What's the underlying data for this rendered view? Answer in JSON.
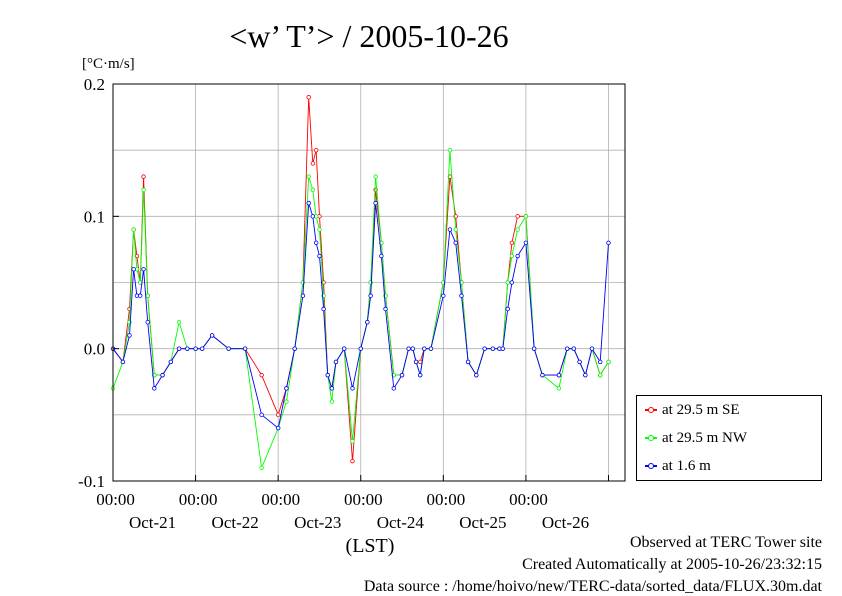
{
  "chart_data": {
    "type": "line",
    "title": "<w’ T’> / 2005-10-26",
    "ylabel": "[°C·m/s]",
    "xlabel": "(LST)",
    "ylim": [
      -0.1,
      0.2
    ],
    "yticks": [
      -0.1,
      0.0,
      0.1,
      0.2
    ],
    "ytick_labels": [
      "-0.1",
      "0.0",
      "0.1",
      "0.2"
    ],
    "xlim": [
      0,
      6
    ],
    "x_unit": "days since Oct-20 12:00",
    "xticks": [
      {
        "time": "00:00",
        "date": "Oct-21",
        "x": 1.0
      },
      {
        "time": "00:00",
        "date": "Oct-22",
        "x": 2.0
      },
      {
        "time": "00:00",
        "date": "Oct-23",
        "x": 3.0
      },
      {
        "time": "00:00",
        "date": "Oct-24",
        "x": 4.0
      },
      {
        "time": "00:00",
        "date": "Oct-25",
        "x": 5.0
      },
      {
        "time": "00:00",
        "date": "Oct-26",
        "x": 6.0
      }
    ],
    "grid": true,
    "legend_position": "right-middle",
    "series": [
      {
        "name": "at 29.5 m SE",
        "color": "#ff0000",
        "x": [
          0.0,
          0.12,
          0.2,
          0.25,
          0.29,
          0.33,
          0.37,
          0.42,
          0.5,
          0.6,
          0.7,
          0.8,
          0.9,
          1.0,
          1.08,
          1.2,
          1.4,
          1.6,
          1.8,
          2.0,
          2.1,
          2.2,
          2.3,
          2.37,
          2.42,
          2.46,
          2.5,
          2.55,
          2.6,
          2.65,
          2.7,
          2.8,
          2.9,
          3.0,
          3.08,
          3.12,
          3.18,
          3.25,
          3.3,
          3.4,
          3.5,
          3.58,
          3.63,
          3.67,
          3.72,
          3.77,
          3.85,
          4.0,
          4.08,
          4.15,
          4.22,
          4.3,
          4.4,
          4.5,
          4.6,
          4.68,
          4.72,
          4.78,
          4.83,
          4.9,
          5.0,
          5.1,
          5.2,
          5.4,
          5.5,
          5.58,
          5.65,
          5.72,
          5.8,
          5.9,
          6.0
        ],
        "values": [
          0.0,
          -0.01,
          0.03,
          0.09,
          0.07,
          0.05,
          0.13,
          0.04,
          -0.02,
          -0.02,
          -0.01,
          0.0,
          0.0,
          0.0,
          0.0,
          0.01,
          0.0,
          0.0,
          -0.02,
          -0.05,
          -0.03,
          0.0,
          0.05,
          0.19,
          0.14,
          0.15,
          0.1,
          0.05,
          -0.02,
          -0.03,
          -0.01,
          0.0,
          -0.085,
          0.0,
          0.02,
          0.05,
          0.12,
          0.08,
          0.04,
          -0.02,
          -0.02,
          0.0,
          0.0,
          -0.01,
          -0.01,
          0.0,
          0.0,
          0.05,
          0.13,
          0.1,
          0.05,
          -0.01,
          -0.02,
          0.0,
          0.0,
          0.0,
          0.0,
          0.05,
          0.08,
          0.1,
          0.1,
          0.0,
          -0.02,
          -0.02,
          0.0,
          0.0,
          -0.01,
          -0.02,
          0.0,
          -0.02,
          -0.01
        ]
      },
      {
        "name": "at 29.5 m NW",
        "color": "#00ff00",
        "x": [
          0.0,
          0.12,
          0.2,
          0.25,
          0.29,
          0.33,
          0.37,
          0.42,
          0.5,
          0.6,
          0.7,
          0.8,
          0.9,
          1.0,
          1.08,
          1.2,
          1.4,
          1.6,
          1.8,
          2.0,
          2.1,
          2.2,
          2.3,
          2.37,
          2.42,
          2.46,
          2.5,
          2.55,
          2.6,
          2.65,
          2.7,
          2.8,
          2.9,
          3.0,
          3.08,
          3.12,
          3.18,
          3.25,
          3.3,
          3.4,
          3.5,
          3.58,
          3.63,
          3.67,
          3.72,
          3.77,
          3.85,
          4.0,
          4.08,
          4.15,
          4.22,
          4.3,
          4.4,
          4.5,
          4.6,
          4.68,
          4.72,
          4.78,
          4.83,
          4.9,
          5.0,
          5.1,
          5.2,
          5.4,
          5.5,
          5.58,
          5.65,
          5.72,
          5.8,
          5.9,
          6.0
        ],
        "values": [
          -0.03,
          -0.01,
          0.02,
          0.09,
          0.06,
          0.05,
          0.12,
          0.04,
          -0.02,
          -0.02,
          -0.01,
          0.02,
          0.0,
          0.0,
          0.0,
          0.01,
          0.0,
          0.0,
          -0.09,
          -0.06,
          -0.04,
          0.0,
          0.05,
          0.13,
          0.12,
          0.1,
          0.09,
          0.04,
          -0.02,
          -0.04,
          -0.01,
          0.0,
          -0.07,
          0.0,
          0.02,
          0.05,
          0.13,
          0.08,
          0.04,
          -0.02,
          -0.02,
          0.0,
          0.0,
          -0.01,
          -0.02,
          0.0,
          0.0,
          0.05,
          0.15,
          0.09,
          0.05,
          -0.01,
          -0.02,
          0.0,
          0.0,
          0.0,
          0.0,
          0.05,
          0.07,
          0.09,
          0.1,
          0.0,
          -0.02,
          -0.03,
          0.0,
          0.0,
          -0.01,
          -0.02,
          0.0,
          -0.02,
          -0.01
        ]
      },
      {
        "name": "at 1.6 m",
        "color": "#0000ff",
        "x": [
          0.0,
          0.12,
          0.2,
          0.25,
          0.29,
          0.33,
          0.37,
          0.42,
          0.5,
          0.6,
          0.7,
          0.8,
          0.9,
          1.0,
          1.08,
          1.2,
          1.4,
          1.6,
          1.8,
          2.0,
          2.1,
          2.2,
          2.3,
          2.37,
          2.42,
          2.46,
          2.5,
          2.55,
          2.6,
          2.65,
          2.7,
          2.8,
          2.9,
          3.0,
          3.08,
          3.12,
          3.18,
          3.25,
          3.3,
          3.4,
          3.5,
          3.58,
          3.63,
          3.67,
          3.72,
          3.77,
          3.85,
          4.0,
          4.08,
          4.15,
          4.22,
          4.3,
          4.4,
          4.5,
          4.6,
          4.68,
          4.72,
          4.78,
          4.83,
          4.9,
          5.0,
          5.1,
          5.2,
          5.4,
          5.5,
          5.58,
          5.65,
          5.72,
          5.8,
          5.9,
          6.0
        ],
        "values": [
          0.0,
          -0.01,
          0.01,
          0.06,
          0.04,
          0.04,
          0.06,
          0.02,
          -0.03,
          -0.02,
          -0.01,
          0.0,
          0.0,
          0.0,
          0.0,
          0.01,
          0.0,
          0.0,
          -0.05,
          -0.06,
          -0.03,
          0.0,
          0.04,
          0.11,
          0.1,
          0.08,
          0.07,
          0.03,
          -0.02,
          -0.03,
          -0.01,
          0.0,
          -0.03,
          0.0,
          0.02,
          0.04,
          0.11,
          0.07,
          0.03,
          -0.03,
          -0.02,
          0.0,
          0.0,
          -0.01,
          -0.02,
          0.0,
          0.0,
          0.04,
          0.09,
          0.08,
          0.04,
          -0.01,
          -0.02,
          0.0,
          0.0,
          0.0,
          0.0,
          0.03,
          0.05,
          0.07,
          0.08,
          0.0,
          -0.02,
          -0.02,
          0.0,
          0.0,
          -0.01,
          -0.02,
          0.0,
          -0.01,
          0.08
        ]
      }
    ]
  },
  "footer": {
    "line1": "Observed at TERC Tower site",
    "line2": "Created Automatically at 2005-10-26/23:32:15",
    "line3": "Data source : /home/hoivo/new/TERC-data/sorted_data/FLUX.30m.dat"
  }
}
